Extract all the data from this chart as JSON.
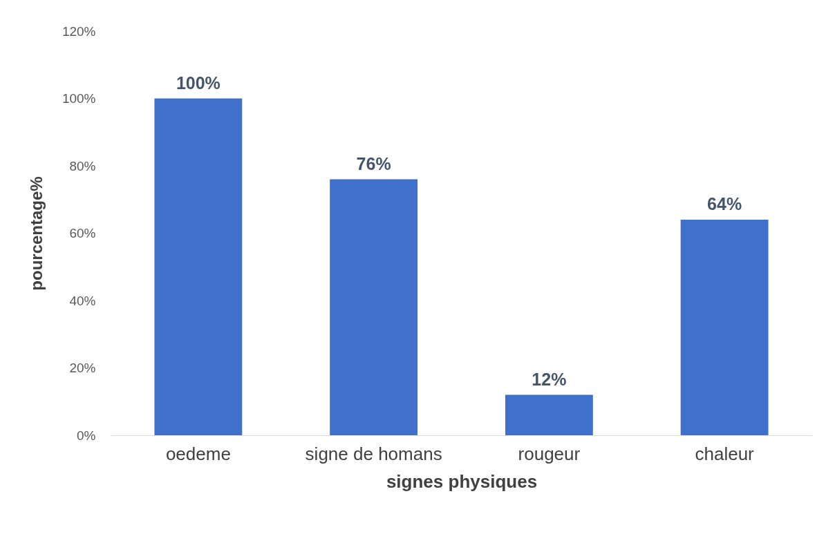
{
  "chart_data": {
    "type": "bar",
    "xlabel": "signes physiques",
    "ylabel": "pourcentage%",
    "categories": [
      "oedeme",
      "signe de homans",
      "rougeur",
      "chaleur"
    ],
    "values": [
      100,
      76,
      12,
      64
    ],
    "value_labels": [
      "100%",
      "76%",
      "12%",
      "64%"
    ],
    "color": "#3f70cc",
    "ylim": [
      0,
      120
    ],
    "yticks": [
      {
        "value": 0,
        "label": "0%"
      },
      {
        "value": 20,
        "label": "20%"
      },
      {
        "value": 40,
        "label": "40%"
      },
      {
        "value": 60,
        "label": "60%"
      },
      {
        "value": 80,
        "label": "80%"
      },
      {
        "value": 100,
        "label": "100%"
      },
      {
        "value": 120,
        "label": "120%"
      }
    ],
    "grid": false
  }
}
